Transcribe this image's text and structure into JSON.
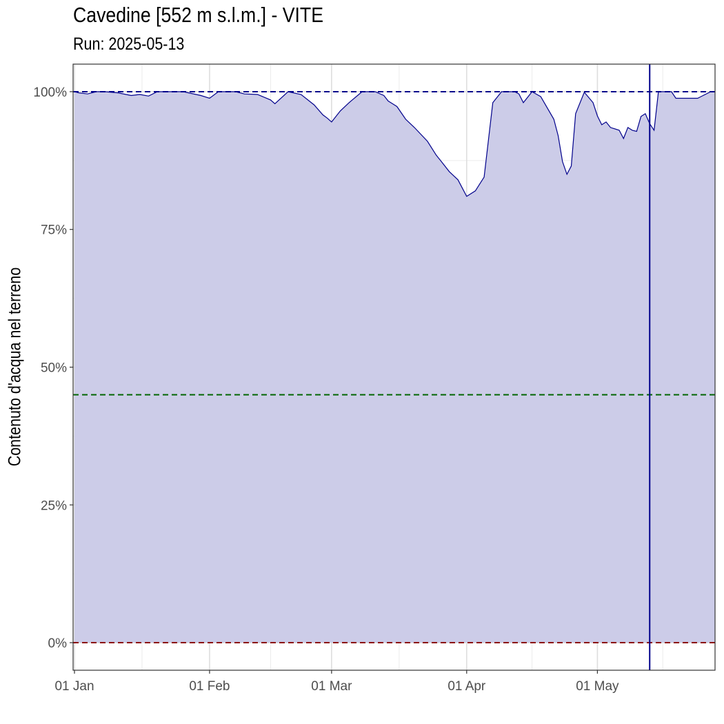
{
  "chart_data": {
    "type": "area",
    "title": "Cavedine [552 m s.l.m.] - VITE",
    "subtitle": "Run: 2025-05-13",
    "ylabel": "Contenuto d'acqua nel terreno",
    "xlabel": "",
    "ylim": [
      -5,
      105
    ],
    "xlim": [
      "2025-01-01",
      "2025-05-29"
    ],
    "x_ticks": [
      {
        "date": "2025-01-01",
        "label": "01 Jan"
      },
      {
        "date": "2025-02-01",
        "label": "01 Feb"
      },
      {
        "date": "2025-03-01",
        "label": "01 Mar"
      },
      {
        "date": "2025-04-01",
        "label": "01 Apr"
      },
      {
        "date": "2025-05-01",
        "label": "01 May"
      }
    ],
    "y_ticks": [
      {
        "value": 0,
        "label": "0%"
      },
      {
        "value": 25,
        "label": "25%"
      },
      {
        "value": 50,
        "label": "50%"
      },
      {
        "value": 75,
        "label": "75%"
      },
      {
        "value": 100,
        "label": "100%"
      }
    ],
    "grid": true,
    "legend": "none",
    "reference_lines": [
      {
        "value": 100,
        "color": "#00008b",
        "style": "dashed"
      },
      {
        "value": 45,
        "color": "#006400",
        "style": "dashed"
      },
      {
        "value": 0,
        "color": "#8b0000",
        "style": "dashed"
      }
    ],
    "run_date_line": {
      "date": "2025-05-13",
      "color": "#00008b"
    },
    "colors": {
      "fill": "#cccce8",
      "line": "#00008b"
    },
    "series": [
      {
        "x": [
          "2025-01-01",
          "2025-01-02",
          "2025-01-04",
          "2025-01-06",
          "2025-01-08",
          "2025-01-11",
          "2025-01-14",
          "2025-01-16",
          "2025-01-18",
          "2025-01-20",
          "2025-01-22",
          "2025-01-24",
          "2025-01-26",
          "2025-01-30",
          "2025-02-01",
          "2025-02-03",
          "2025-02-06",
          "2025-02-07",
          "2025-02-09",
          "2025-02-12",
          "2025-02-15",
          "2025-02-16",
          "2025-02-19",
          "2025-02-22",
          "2025-02-25",
          "2025-02-27",
          "2025-02-28",
          "2025-03-01",
          "2025-03-03",
          "2025-03-05",
          "2025-03-08",
          "2025-03-11",
          "2025-03-13",
          "2025-03-14",
          "2025-03-15",
          "2025-03-16",
          "2025-03-18",
          "2025-03-20",
          "2025-03-23",
          "2025-03-25",
          "2025-03-26",
          "2025-03-28",
          "2025-03-30",
          "2025-04-01",
          "2025-04-03",
          "2025-04-05",
          "2025-04-07",
          "2025-04-09",
          "2025-04-11",
          "2025-04-12",
          "2025-04-13",
          "2025-04-14",
          "2025-04-16",
          "2025-04-18",
          "2025-04-21",
          "2025-04-22",
          "2025-04-23",
          "2025-04-24",
          "2025-04-25",
          "2025-04-26",
          "2025-04-28",
          "2025-04-30",
          "2025-05-01",
          "2025-05-02",
          "2025-05-03",
          "2025-05-04",
          "2025-05-06",
          "2025-05-07",
          "2025-05-08",
          "2025-05-09",
          "2025-05-10",
          "2025-05-11",
          "2025-05-12",
          "2025-05-13",
          "2025-05-14",
          "2025-05-15",
          "2025-05-17",
          "2025-05-18",
          "2025-05-19",
          "2025-05-20",
          "2025-05-21",
          "2025-05-22",
          "2025-05-24",
          "2025-05-27",
          "2025-05-28"
        ],
        "y": [
          100,
          99.8,
          99.6,
          100,
          100,
          99.8,
          99.3,
          99.5,
          99.2,
          100,
          100,
          100,
          100,
          99.3,
          98.8,
          100,
          100,
          100,
          99.6,
          99.5,
          98.5,
          97.8,
          100,
          99.5,
          97.6,
          95.8,
          95.2,
          94.5,
          96.5,
          98,
          100,
          100,
          99.3,
          98.3,
          97.8,
          97.3,
          95,
          93.5,
          91,
          88.5,
          87.5,
          85.5,
          84,
          81,
          82,
          84.5,
          98,
          100,
          100,
          100,
          99.6,
          98,
          100,
          99.1,
          95,
          92,
          87.3,
          85,
          86.5,
          96,
          99.9,
          98,
          95.6,
          94,
          94.5,
          93.5,
          93,
          91.5,
          93.5,
          93,
          92.8,
          95.5,
          96,
          94.2,
          93,
          100,
          100,
          100,
          98.8,
          98.8,
          98.8,
          98.8,
          98.8,
          100,
          100
        ]
      }
    ]
  }
}
